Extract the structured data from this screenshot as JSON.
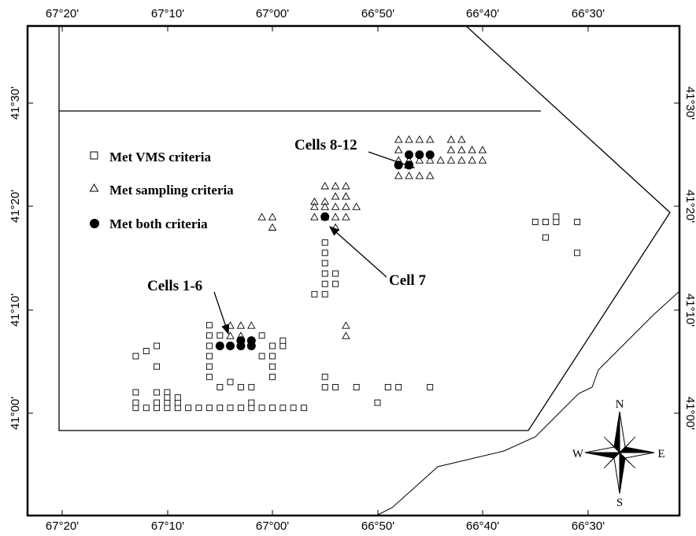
{
  "axes": {
    "lon_ticks": [
      "67°20'",
      "67°10'",
      "67°00'",
      "66°50'",
      "66°40'",
      "66°30'"
    ],
    "lat_ticks": [
      "41°30'",
      "41°20'",
      "41°10'",
      "41°00'"
    ]
  },
  "legend": [
    {
      "symbol": "square",
      "label": "Met VMS criteria"
    },
    {
      "symbol": "triangle",
      "label": "Met sampling criteria"
    },
    {
      "symbol": "circle",
      "label": "Met both criteria"
    }
  ],
  "annotations": [
    {
      "label": "Cells 8-12"
    },
    {
      "label": "Cell 7"
    },
    {
      "label": "Cells 1-6"
    }
  ],
  "compass": {
    "n": "N",
    "s": "S",
    "e": "E",
    "w": "W"
  },
  "cells": {
    "vms_squares": [
      [
        -67.1833,
        41.075
      ],
      [
        -67.0667,
        41.05
      ],
      [
        -67.0333,
        41.0417
      ],
      [
        -67.2167,
        41.0083
      ],
      [
        -67.2,
        41.0083
      ],
      [
        -67.1833,
        41.0083
      ],
      [
        -67.1667,
        41.0083
      ],
      [
        -67.15,
        41.0083
      ],
      [
        -67.1333,
        41.0083
      ],
      [
        -67.1167,
        41.0083
      ],
      [
        -67.1,
        41.0083
      ],
      [
        -67.0833,
        41.0083
      ],
      [
        -67.0667,
        41.0083
      ],
      [
        -67.05,
        41.0083
      ],
      [
        -67.0333,
        41.0083
      ],
      [
        -67.0167,
        41.0083
      ],
      [
        -67.0,
        41.0083
      ],
      [
        -66.9833,
        41.0083
      ],
      [
        -66.9667,
        41.0083
      ],
      [
        -66.95,
        41.0083
      ],
      [
        -67.2167,
        41.0917
      ],
      [
        -67.2,
        41.1
      ],
      [
        -67.1833,
        41.1083
      ],
      [
        -67.2167,
        41.0333
      ],
      [
        -67.1833,
        41.0333
      ],
      [
        -67.1667,
        41.0333
      ],
      [
        -67.2167,
        41.0167
      ],
      [
        -67.1833,
        41.0167
      ],
      [
        -67.1667,
        41.0167
      ],
      [
        -67.15,
        41.0167
      ],
      [
        -67.1667,
        41.025
      ],
      [
        -67.15,
        41.025
      ],
      [
        -67.0833,
        41.0417
      ],
      [
        -67.05,
        41.0417
      ],
      [
        -67.0333,
        41.0167
      ],
      [
        -67.1,
        41.0583
      ],
      [
        -67.1,
        41.075
      ],
      [
        -67.1,
        41.0917
      ],
      [
        -67.1,
        41.1083
      ],
      [
        -67.1,
        41.125
      ],
      [
        -67.1,
        41.1417
      ],
      [
        -67.0833,
        41.125
      ],
      [
        -67.0667,
        41.1083
      ],
      [
        -67.05,
        41.1083
      ],
      [
        -67.0333,
        41.1083
      ],
      [
        -67.0,
        41.1083
      ],
      [
        -66.9833,
        41.1083
      ],
      [
        -67.0167,
        41.0917
      ],
      [
        -67.0167,
        41.125
      ],
      [
        -67.0,
        41.075
      ],
      [
        -67.0,
        41.0583
      ],
      [
        -67.0,
        41.0917
      ],
      [
        -66.9833,
        41.1167
      ],
      [
        -66.9167,
        41.0417
      ],
      [
        -66.9167,
        41.0583
      ],
      [
        -66.9,
        41.0417
      ],
      [
        -66.8667,
        41.0417
      ],
      [
        -66.8333,
        41.0167
      ],
      [
        -66.8167,
        41.0417
      ],
      [
        -66.8,
        41.0417
      ],
      [
        -66.75,
        41.0417
      ],
      [
        -66.9167,
        41.2583
      ],
      [
        -66.9167,
        41.2417
      ],
      [
        -66.9167,
        41.225
      ],
      [
        -66.9167,
        41.2083
      ],
      [
        -66.9167,
        41.1917
      ],
      [
        -66.9167,
        41.275
      ],
      [
        -66.9,
        41.2083
      ],
      [
        -66.9,
        41.225
      ],
      [
        -66.9333,
        41.1917
      ],
      [
        -66.5833,
        41.3083
      ],
      [
        -66.5667,
        41.3083
      ],
      [
        -66.55,
        41.3083
      ],
      [
        -66.5167,
        41.3083
      ],
      [
        -66.55,
        41.3167
      ],
      [
        -66.5667,
        41.2833
      ],
      [
        -66.5167,
        41.2583
      ]
    ],
    "sampling_triangles": [
      [
        -66.8,
        41.4417
      ],
      [
        -66.7833,
        41.4417
      ],
      [
        -66.7667,
        41.4417
      ],
      [
        -66.75,
        41.4417
      ],
      [
        -66.7167,
        41.4417
      ],
      [
        -66.7,
        41.4417
      ],
      [
        -66.8,
        41.425
      ],
      [
        -66.7167,
        41.425
      ],
      [
        -66.7,
        41.425
      ],
      [
        -66.6833,
        41.425
      ],
      [
        -66.6667,
        41.425
      ],
      [
        -66.8,
        41.4083
      ],
      [
        -66.7833,
        41.4083
      ],
      [
        -66.7667,
        41.4083
      ],
      [
        -66.75,
        41.4083
      ],
      [
        -66.7333,
        41.4083
      ],
      [
        -66.7167,
        41.4083
      ],
      [
        -66.7,
        41.4083
      ],
      [
        -66.6833,
        41.4083
      ],
      [
        -66.6667,
        41.4083
      ],
      [
        -66.8,
        41.3833
      ],
      [
        -66.7833,
        41.3833
      ],
      [
        -66.7667,
        41.3833
      ],
      [
        -66.75,
        41.3833
      ],
      [
        -66.9167,
        41.3667
      ],
      [
        -66.9,
        41.3667
      ],
      [
        -66.8833,
        41.3667
      ],
      [
        -66.9,
        41.35
      ],
      [
        -66.8833,
        41.35
      ],
      [
        -66.9333,
        41.3417
      ],
      [
        -66.9167,
        41.3417
      ],
      [
        -66.9,
        41.3333
      ],
      [
        -66.8833,
        41.3333
      ],
      [
        -66.8667,
        41.3333
      ],
      [
        -66.9333,
        41.3333
      ],
      [
        -66.9167,
        41.3333
      ],
      [
        -66.9333,
        41.3167
      ],
      [
        -66.9167,
        41.3167
      ],
      [
        -66.9,
        41.3167
      ],
      [
        -66.8833,
        41.3167
      ],
      [
        -66.9,
        41.3
      ],
      [
        -67.0,
        41.3167
      ],
      [
        -67.0167,
        41.3167
      ],
      [
        -67.0,
        41.3
      ],
      [
        -66.8833,
        41.1417
      ],
      [
        -66.8833,
        41.125
      ],
      [
        -67.0667,
        41.1417
      ],
      [
        -67.05,
        41.1417
      ],
      [
        -67.0333,
        41.1417
      ],
      [
        -67.0667,
        41.125
      ],
      [
        -67.05,
        41.125
      ]
    ],
    "both_circles": [
      [
        -67.0833,
        41.1083
      ],
      [
        -67.0667,
        41.1083
      ],
      [
        -67.05,
        41.1083
      ],
      [
        -67.0333,
        41.1083
      ],
      [
        -67.05,
        41.1167
      ],
      [
        -67.0333,
        41.1167
      ],
      [
        -66.9167,
        41.3167
      ],
      [
        -66.8,
        41.4
      ],
      [
        -66.7833,
        41.4
      ],
      [
        -66.7833,
        41.4167
      ],
      [
        -66.7667,
        41.4167
      ],
      [
        -66.75,
        41.4167
      ]
    ]
  }
}
